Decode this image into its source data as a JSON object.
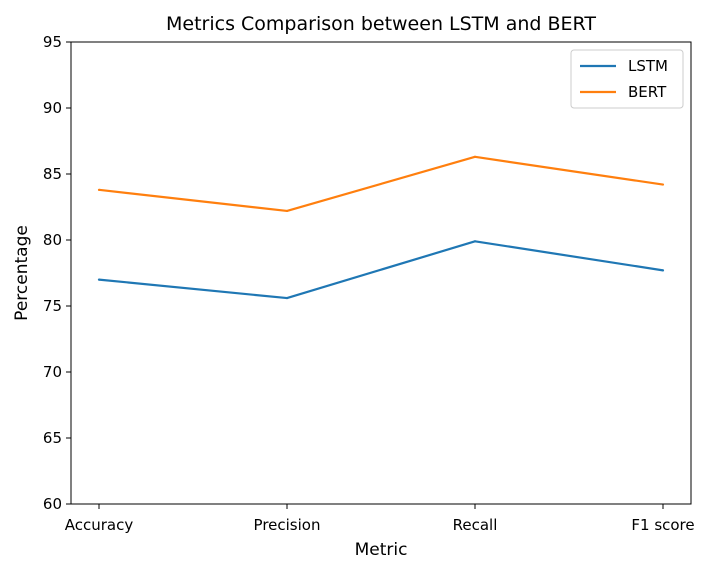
{
  "chart_data": {
    "type": "line",
    "title": "Metrics Comparison between LSTM and BERT",
    "xlabel": "Metric",
    "ylabel": "Percentage",
    "categories": [
      "Accuracy",
      "Precision",
      "Recall",
      "F1 score"
    ],
    "ylim": [
      60,
      95
    ],
    "yticks": [
      60,
      65,
      70,
      75,
      80,
      85,
      90,
      95
    ],
    "grid": false,
    "legend_position": "top-right",
    "series": [
      {
        "name": "LSTM",
        "color": "#1f77b4",
        "values": [
          77.0,
          75.6,
          79.9,
          77.7
        ]
      },
      {
        "name": "BERT",
        "color": "#ff7f0e",
        "values": [
          83.8,
          82.2,
          86.3,
          84.2
        ]
      }
    ]
  }
}
